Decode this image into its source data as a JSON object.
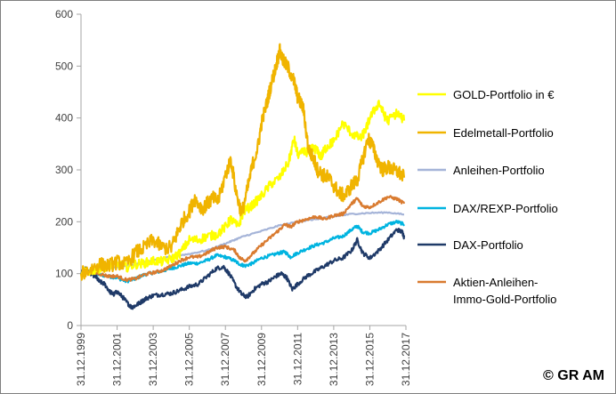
{
  "copyright": "© GR AM",
  "chart_data": {
    "type": "line",
    "title": "",
    "xlabel": "",
    "ylabel": "",
    "ylim": [
      0,
      600
    ],
    "yticks": [
      0,
      100,
      200,
      300,
      400,
      500,
      600
    ],
    "xlim": [
      1999.997,
      2017.997
    ],
    "x_tick_labels": [
      "31.12.1999",
      "31.12.2001",
      "31.12.2003",
      "31.12.2005",
      "31.12.2007",
      "31.12.2009",
      "31.12.2011",
      "31.12.2013",
      "31.12.2015",
      "31.12.2017"
    ],
    "x_tick_years": [
      1999.997,
      2001.997,
      2003.997,
      2005.997,
      2007.997,
      2009.997,
      2011.997,
      2013.997,
      2015.997,
      2017.997
    ],
    "grid": false,
    "legend_position": "right",
    "series": [
      {
        "name": "GOLD-Portfolio in €",
        "color": "#ffff00",
        "points": [
          [
            2000.0,
            100
          ],
          [
            2000.5,
            105
          ],
          [
            2001.0,
            110
          ],
          [
            2001.5,
            115
          ],
          [
            2002.0,
            118
          ],
          [
            2002.5,
            112
          ],
          [
            2003.0,
            118
          ],
          [
            2003.5,
            120
          ],
          [
            2004.0,
            125
          ],
          [
            2004.5,
            123
          ],
          [
            2005.0,
            128
          ],
          [
            2005.5,
            140
          ],
          [
            2006.0,
            165
          ],
          [
            2006.5,
            165
          ],
          [
            2007.0,
            172
          ],
          [
            2007.5,
            175
          ],
          [
            2008.0,
            190
          ],
          [
            2008.3,
            205
          ],
          [
            2008.7,
            190
          ],
          [
            2009.0,
            220
          ],
          [
            2009.5,
            232
          ],
          [
            2010.0,
            250
          ],
          [
            2010.5,
            272
          ],
          [
            2011.0,
            285
          ],
          [
            2011.5,
            315
          ],
          [
            2011.8,
            360
          ],
          [
            2012.0,
            330
          ],
          [
            2012.5,
            335
          ],
          [
            2012.8,
            340
          ],
          [
            2013.0,
            340
          ],
          [
            2013.3,
            325
          ],
          [
            2013.5,
            340
          ],
          [
            2013.8,
            350
          ],
          [
            2014.0,
            355
          ],
          [
            2014.5,
            390
          ],
          [
            2015.0,
            370
          ],
          [
            2015.5,
            360
          ],
          [
            2015.8,
            380
          ],
          [
            2016.0,
            400
          ],
          [
            2016.5,
            430
          ],
          [
            2016.8,
            405
          ],
          [
            2017.0,
            395
          ],
          [
            2017.5,
            410
          ],
          [
            2017.9,
            395
          ]
        ]
      },
      {
        "name": "Edelmetall-Portfolio",
        "color": "#f0b400",
        "points": [
          [
            2000.0,
            100
          ],
          [
            2000.5,
            108
          ],
          [
            2001.0,
            118
          ],
          [
            2001.5,
            115
          ],
          [
            2002.0,
            122
          ],
          [
            2002.5,
            118
          ],
          [
            2003.0,
            140
          ],
          [
            2003.5,
            150
          ],
          [
            2004.0,
            165
          ],
          [
            2004.5,
            150
          ],
          [
            2005.0,
            150
          ],
          [
            2005.3,
            175
          ],
          [
            2005.6,
            200
          ],
          [
            2006.0,
            220
          ],
          [
            2006.3,
            245
          ],
          [
            2006.7,
            225
          ],
          [
            2007.0,
            235
          ],
          [
            2007.3,
            245
          ],
          [
            2007.6,
            240
          ],
          [
            2008.0,
            290
          ],
          [
            2008.3,
            320
          ],
          [
            2008.6,
            255
          ],
          [
            2008.9,
            215
          ],
          [
            2009.2,
            260
          ],
          [
            2009.5,
            310
          ],
          [
            2009.8,
            345
          ],
          [
            2010.0,
            390
          ],
          [
            2010.3,
            430
          ],
          [
            2010.5,
            460
          ],
          [
            2010.8,
            500
          ],
          [
            2011.0,
            530
          ],
          [
            2011.2,
            510
          ],
          [
            2011.5,
            495
          ],
          [
            2011.8,
            470
          ],
          [
            2012.0,
            440
          ],
          [
            2012.3,
            420
          ],
          [
            2012.6,
            340
          ],
          [
            2012.9,
            320
          ],
          [
            2013.1,
            300
          ],
          [
            2013.4,
            290
          ],
          [
            2013.7,
            285
          ],
          [
            2014.0,
            270
          ],
          [
            2014.3,
            255
          ],
          [
            2014.6,
            250
          ],
          [
            2015.0,
            270
          ],
          [
            2015.3,
            280
          ],
          [
            2015.6,
            320
          ],
          [
            2015.9,
            360
          ],
          [
            2016.1,
            350
          ],
          [
            2016.4,
            320
          ],
          [
            2016.7,
            300
          ],
          [
            2017.0,
            305
          ],
          [
            2017.3,
            300
          ],
          [
            2017.6,
            295
          ],
          [
            2017.9,
            285
          ]
        ]
      },
      {
        "name": "Anleihen-Portfolio",
        "color": "#a5b4d8",
        "points": [
          [
            2000.0,
            100
          ],
          [
            2001.0,
            106
          ],
          [
            2002.0,
            113
          ],
          [
            2003.0,
            118
          ],
          [
            2004.0,
            125
          ],
          [
            2005.0,
            133
          ],
          [
            2006.0,
            138
          ],
          [
            2007.0,
            145
          ],
          [
            2008.0,
            158
          ],
          [
            2008.5,
            165
          ],
          [
            2009.0,
            172
          ],
          [
            2010.0,
            182
          ],
          [
            2011.0,
            193
          ],
          [
            2012.0,
            200
          ],
          [
            2013.0,
            205
          ],
          [
            2014.0,
            210
          ],
          [
            2015.0,
            215
          ],
          [
            2016.0,
            217
          ],
          [
            2017.0,
            218
          ],
          [
            2017.9,
            214
          ]
        ]
      },
      {
        "name": "DAX/REXP-Portfolio",
        "color": "#00b4e0",
        "points": [
          [
            2000.0,
            100
          ],
          [
            2000.3,
            105
          ],
          [
            2000.7,
            102
          ],
          [
            2001.0,
            98
          ],
          [
            2001.5,
            95
          ],
          [
            2002.0,
            92
          ],
          [
            2002.5,
            85
          ],
          [
            2003.0,
            90
          ],
          [
            2003.5,
            98
          ],
          [
            2004.0,
            102
          ],
          [
            2004.5,
            105
          ],
          [
            2005.0,
            110
          ],
          [
            2005.5,
            115
          ],
          [
            2006.0,
            120
          ],
          [
            2006.5,
            120
          ],
          [
            2007.0,
            126
          ],
          [
            2007.5,
            135
          ],
          [
            2008.0,
            132
          ],
          [
            2008.5,
            125
          ],
          [
            2008.8,
            118
          ],
          [
            2009.1,
            115
          ],
          [
            2009.5,
            120
          ],
          [
            2010.0,
            130
          ],
          [
            2010.5,
            135
          ],
          [
            2011.0,
            140
          ],
          [
            2011.3,
            142
          ],
          [
            2011.6,
            132
          ],
          [
            2012.0,
            140
          ],
          [
            2012.5,
            148
          ],
          [
            2013.0,
            155
          ],
          [
            2013.5,
            160
          ],
          [
            2014.0,
            168
          ],
          [
            2014.5,
            172
          ],
          [
            2015.0,
            185
          ],
          [
            2015.3,
            192
          ],
          [
            2015.6,
            180
          ],
          [
            2016.0,
            178
          ],
          [
            2016.5,
            185
          ],
          [
            2017.0,
            195
          ],
          [
            2017.5,
            200
          ],
          [
            2017.9,
            195
          ]
        ]
      },
      {
        "name": "DAX-Portfolio",
        "color": "#1f3a68",
        "points": [
          [
            2000.0,
            100
          ],
          [
            2000.2,
            110
          ],
          [
            2000.5,
            100
          ],
          [
            2000.8,
            95
          ],
          [
            2001.0,
            85
          ],
          [
            2001.3,
            80
          ],
          [
            2001.6,
            65
          ],
          [
            2001.8,
            60
          ],
          [
            2002.0,
            65
          ],
          [
            2002.3,
            55
          ],
          [
            2002.6,
            42
          ],
          [
            2002.8,
            35
          ],
          [
            2003.0,
            38
          ],
          [
            2003.3,
            45
          ],
          [
            2003.6,
            52
          ],
          [
            2004.0,
            58
          ],
          [
            2004.5,
            60
          ],
          [
            2005.0,
            62
          ],
          [
            2005.5,
            68
          ],
          [
            2006.0,
            75
          ],
          [
            2006.5,
            80
          ],
          [
            2007.0,
            95
          ],
          [
            2007.5,
            110
          ],
          [
            2007.9,
            113
          ],
          [
            2008.2,
            100
          ],
          [
            2008.6,
            75
          ],
          [
            2008.9,
            60
          ],
          [
            2009.2,
            55
          ],
          [
            2009.6,
            70
          ],
          [
            2010.0,
            80
          ],
          [
            2010.4,
            85
          ],
          [
            2010.8,
            95
          ],
          [
            2011.1,
            100
          ],
          [
            2011.4,
            92
          ],
          [
            2011.7,
            70
          ],
          [
            2012.0,
            80
          ],
          [
            2012.5,
            95
          ],
          [
            2013.0,
            105
          ],
          [
            2013.5,
            115
          ],
          [
            2014.0,
            125
          ],
          [
            2014.5,
            130
          ],
          [
            2015.0,
            145
          ],
          [
            2015.3,
            165
          ],
          [
            2015.6,
            140
          ],
          [
            2016.0,
            130
          ],
          [
            2016.5,
            145
          ],
          [
            2017.0,
            165
          ],
          [
            2017.5,
            185
          ],
          [
            2017.8,
            180
          ],
          [
            2017.9,
            170
          ]
        ]
      },
      {
        "name": "Aktien-Anleihen-Immo-Gold-Portfolio",
        "color": "#d97b30",
        "points": [
          [
            2000.0,
            100
          ],
          [
            2000.5,
            103
          ],
          [
            2001.0,
            100
          ],
          [
            2001.5,
            95
          ],
          [
            2002.0,
            95
          ],
          [
            2002.5,
            88
          ],
          [
            2003.0,
            90
          ],
          [
            2003.5,
            98
          ],
          [
            2004.0,
            102
          ],
          [
            2004.5,
            106
          ],
          [
            2005.0,
            115
          ],
          [
            2005.5,
            125
          ],
          [
            2006.0,
            132
          ],
          [
            2006.5,
            132
          ],
          [
            2007.0,
            140
          ],
          [
            2007.5,
            150
          ],
          [
            2008.0,
            152
          ],
          [
            2008.5,
            145
          ],
          [
            2008.8,
            130
          ],
          [
            2009.1,
            125
          ],
          [
            2009.5,
            138
          ],
          [
            2010.0,
            155
          ],
          [
            2010.5,
            170
          ],
          [
            2011.0,
            185
          ],
          [
            2011.3,
            195
          ],
          [
            2011.6,
            190
          ],
          [
            2012.0,
            200
          ],
          [
            2012.5,
            205
          ],
          [
            2013.0,
            210
          ],
          [
            2013.5,
            205
          ],
          [
            2014.0,
            212
          ],
          [
            2014.5,
            215
          ],
          [
            2015.0,
            235
          ],
          [
            2015.3,
            245
          ],
          [
            2015.6,
            230
          ],
          [
            2016.0,
            228
          ],
          [
            2016.5,
            238
          ],
          [
            2017.0,
            248
          ],
          [
            2017.5,
            244
          ],
          [
            2017.9,
            235
          ]
        ]
      }
    ]
  }
}
